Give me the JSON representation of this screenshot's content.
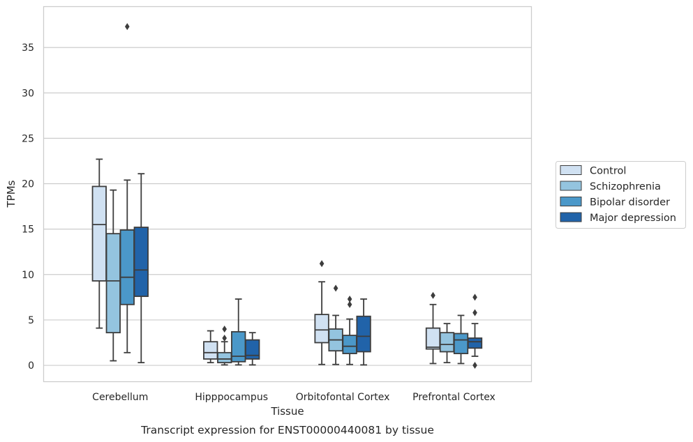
{
  "caption": "Transcript expression for ENST00000440081 by tissue",
  "chart_data": {
    "type": "boxplot",
    "title": "",
    "xlabel": "Tissue",
    "ylabel": "TPMs",
    "ylim": [
      -1.8,
      39.5
    ],
    "yticks": [
      0,
      5,
      10,
      15,
      20,
      25,
      30,
      35
    ],
    "grid": "horizontal",
    "legend_placement": "right",
    "categories": [
      "Cerebellum",
      "Hipppocampus",
      "Orbitofontal Cortex",
      "Prefrontal Cortex"
    ],
    "series": [
      {
        "name": "Control",
        "color": "#d0e1f2",
        "boxes": [
          {
            "whislo": 4.1,
            "q1": 9.3,
            "med": 15.5,
            "q3": 19.7,
            "whishi": 22.7,
            "fliers": []
          },
          {
            "whislo": 0.3,
            "q1": 0.7,
            "med": 1.4,
            "q3": 2.6,
            "whishi": 3.8,
            "fliers": []
          },
          {
            "whislo": 0.1,
            "q1": 2.5,
            "med": 3.9,
            "q3": 5.6,
            "whishi": 9.2,
            "fliers": [
              11.2
            ]
          },
          {
            "whislo": 0.2,
            "q1": 1.8,
            "med": 2.0,
            "q3": 4.1,
            "whishi": 6.7,
            "fliers": [
              7.7
            ]
          }
        ]
      },
      {
        "name": "Schizophrenia",
        "color": "#94c4df",
        "boxes": [
          {
            "whislo": 0.5,
            "q1": 3.6,
            "med": 9.3,
            "q3": 14.5,
            "whishi": 19.3,
            "fliers": []
          },
          {
            "whislo": 0.05,
            "q1": 0.3,
            "med": 0.7,
            "q3": 1.4,
            "whishi": 2.6,
            "fliers": [
              3.0,
              4.0
            ]
          },
          {
            "whislo": 0.1,
            "q1": 1.6,
            "med": 2.8,
            "q3": 4.0,
            "whishi": 5.5,
            "fliers": [
              8.5
            ]
          },
          {
            "whislo": 0.3,
            "q1": 1.5,
            "med": 2.3,
            "q3": 3.6,
            "whishi": 4.6,
            "fliers": []
          }
        ]
      },
      {
        "name": "Bipolar disorder",
        "color": "#4b98c9",
        "boxes": [
          {
            "whislo": 1.4,
            "q1": 6.7,
            "med": 9.7,
            "q3": 14.9,
            "whishi": 20.4,
            "fliers": [
              37.3
            ]
          },
          {
            "whislo": 0.05,
            "q1": 0.4,
            "med": 1.0,
            "q3": 3.7,
            "whishi": 7.3,
            "fliers": []
          },
          {
            "whislo": 0.1,
            "q1": 1.3,
            "med": 2.1,
            "q3": 3.3,
            "whishi": 5.1,
            "fliers": [
              6.7,
              7.3
            ]
          },
          {
            "whislo": 0.2,
            "q1": 1.3,
            "med": 2.8,
            "q3": 3.5,
            "whishi": 5.5,
            "fliers": []
          }
        ]
      },
      {
        "name": "Major depression",
        "color": "#2163a9",
        "boxes": [
          {
            "whislo": 0.3,
            "q1": 7.6,
            "med": 10.5,
            "q3": 15.2,
            "whishi": 21.1,
            "fliers": []
          },
          {
            "whislo": 0.05,
            "q1": 0.7,
            "med": 1.1,
            "q3": 2.8,
            "whishi": 3.6,
            "fliers": []
          },
          {
            "whislo": 0.05,
            "q1": 1.5,
            "med": 3.2,
            "q3": 5.4,
            "whishi": 7.3,
            "fliers": []
          },
          {
            "whislo": 1.0,
            "q1": 1.9,
            "med": 2.6,
            "q3": 3.0,
            "whishi": 4.6,
            "fliers": [
              0.0,
              5.8,
              7.5
            ]
          }
        ]
      }
    ]
  }
}
